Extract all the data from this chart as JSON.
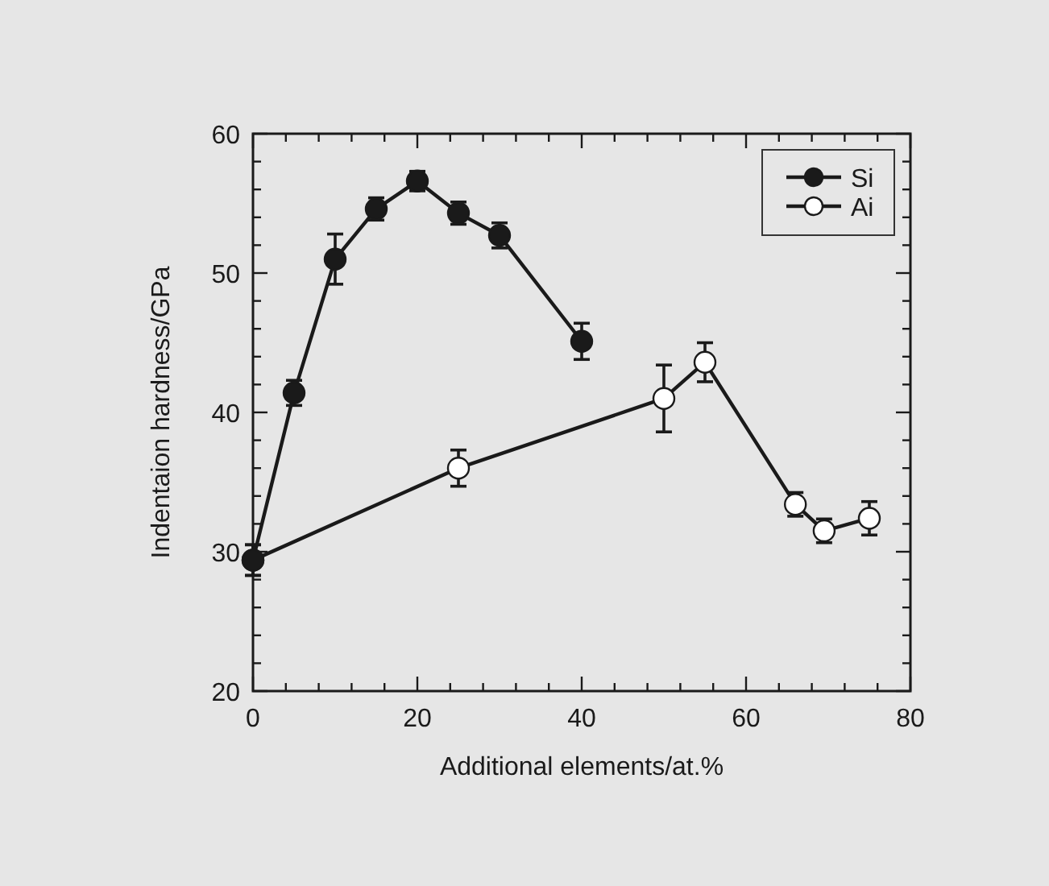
{
  "chart_data": {
    "type": "line",
    "xlabel": "Additional elements/at.%",
    "ylabel": "Indentaion hardness/GPa",
    "xlim": [
      0,
      80
    ],
    "ylim": [
      20,
      60
    ],
    "xticks": [
      0,
      {
        "value": 4,
        "label": null
      },
      {
        "value": 8,
        "label": null
      },
      {
        "value": 12,
        "label": null
      },
      {
        "value": 16,
        "label": null
      },
      20,
      {
        "value": 24,
        "label": null
      },
      {
        "value": 28,
        "label": null
      },
      {
        "value": 32,
        "label": null
      },
      {
        "value": 36,
        "label": null
      },
      40,
      {
        "value": 44,
        "label": null
      },
      {
        "value": 48,
        "label": null
      },
      {
        "value": 52,
        "label": null
      },
      {
        "value": 56,
        "label": null
      },
      60,
      {
        "value": 64,
        "label": null
      },
      {
        "value": 68,
        "label": null
      },
      {
        "value": 72,
        "label": null
      },
      {
        "value": 76,
        "label": null
      },
      80
    ],
    "yticks": [
      20,
      {
        "value": 22,
        "label": null
      },
      {
        "value": 24,
        "label": null
      },
      {
        "value": 26,
        "label": null
      },
      {
        "value": 28,
        "label": null
      },
      30,
      {
        "value": 32,
        "label": null
      },
      {
        "value": 34,
        "label": null
      },
      {
        "value": 36,
        "label": null
      },
      {
        "value": 38,
        "label": null
      },
      40,
      {
        "value": 42,
        "label": null
      },
      {
        "value": 44,
        "label": null
      },
      {
        "value": 46,
        "label": null
      },
      {
        "value": 48,
        "label": null
      },
      50,
      {
        "value": 52,
        "label": null
      },
      {
        "value": 54,
        "label": null
      },
      {
        "value": 56,
        "label": null
      },
      {
        "value": 58,
        "label": null
      },
      60
    ],
    "legend": "top right",
    "marker": "circle",
    "line_style": "solid",
    "grid": false,
    "series": [
      {
        "name": "Ai",
        "color": "#ffffff",
        "x": [
          0,
          25,
          50,
          55,
          66,
          69.5,
          75
        ],
        "values": [
          29.4,
          36.0,
          41.0,
          43.6,
          33.4,
          31.5,
          32.4
        ],
        "errors": [
          1.1,
          1.3,
          2.4,
          1.4,
          0.85,
          0.85,
          1.2
        ]
      },
      {
        "name": "Si",
        "color": "#1a1a1a",
        "x": [
          0,
          5,
          10,
          15,
          20,
          25,
          30,
          40
        ],
        "values": [
          29.4,
          41.4,
          51.0,
          54.6,
          56.6,
          54.3,
          52.7,
          45.1
        ],
        "errors": [
          1.1,
          0.9,
          1.8,
          0.8,
          0.7,
          0.8,
          0.9,
          1.3
        ]
      }
    ]
  }
}
